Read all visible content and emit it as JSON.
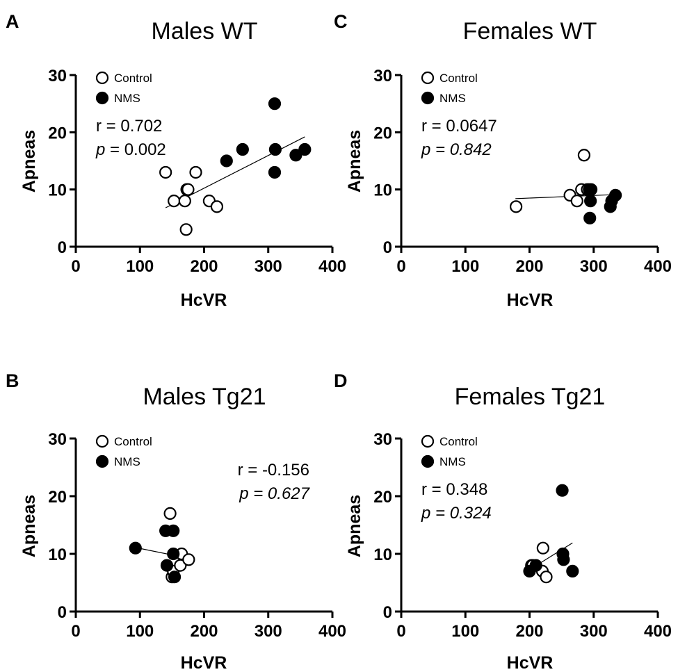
{
  "chart_data": [
    {
      "id": "A",
      "type": "scatter",
      "panel_letter": "A",
      "title": "Males WT",
      "xlabel": "HcVR",
      "ylabel": "Apneas",
      "xlim": [
        0,
        400
      ],
      "ylim": [
        0,
        30
      ],
      "xticks": [
        "0",
        "100",
        "200",
        "300",
        "400"
      ],
      "yticks": [
        "0",
        "10",
        "20",
        "30"
      ],
      "legend": [
        "Control",
        "NMS"
      ],
      "r_text": "r = 0.702",
      "p_label": "p",
      "p_value": " = 0.002",
      "p_value_italic": false,
      "stats_position": "left",
      "fit_line": {
        "x": [
          140,
          357
        ],
        "y": [
          6.8,
          19.2
        ]
      },
      "series": [
        {
          "name": "Control",
          "x": [
            140,
            153,
            170,
            172,
            173,
            175,
            187,
            208,
            220
          ],
          "y": [
            13,
            8,
            8,
            3,
            10,
            10,
            13,
            8,
            7
          ]
        },
        {
          "name": "NMS",
          "x": [
            235,
            260,
            310,
            310,
            311,
            343,
            357
          ],
          "y": [
            15,
            17,
            25,
            13,
            17,
            16,
            17
          ]
        }
      ]
    },
    {
      "id": "B",
      "type": "scatter",
      "panel_letter": "B",
      "title": "Males Tg21",
      "xlabel": "HcVR",
      "ylabel": "Apneas",
      "xlim": [
        0,
        400
      ],
      "ylim": [
        0,
        30
      ],
      "xticks": [
        "0",
        "100",
        "200",
        "300",
        "400"
      ],
      "yticks": [
        "0",
        "10",
        "20",
        "30"
      ],
      "legend": [
        "Control",
        "NMS"
      ],
      "r_text": "r = -0.156",
      "p_label": "p",
      "p_value": " = 0.627",
      "p_value_italic": true,
      "stats_position": "right",
      "fit_line": {
        "x": [
          93,
          177
        ],
        "y": [
          11.1,
          9.2
        ]
      },
      "series": [
        {
          "name": "Control",
          "x": [
            147,
            150,
            152,
            163,
            165,
            176
          ],
          "y": [
            17,
            6,
            7,
            8,
            10,
            9
          ]
        },
        {
          "name": "NMS",
          "x": [
            93,
            140,
            142,
            152,
            152,
            154
          ],
          "y": [
            11,
            14,
            8,
            14,
            10,
            6
          ]
        }
      ]
    },
    {
      "id": "C",
      "type": "scatter",
      "panel_letter": "C",
      "title": "Females WT",
      "xlabel": "HcVR",
      "ylabel": "Apneas",
      "xlim": [
        0,
        400
      ],
      "ylim": [
        0,
        30
      ],
      "xticks": [
        "0",
        "100",
        "200",
        "300",
        "400"
      ],
      "yticks": [
        "0",
        "10",
        "20",
        "30"
      ],
      "legend": [
        "Control",
        "NMS"
      ],
      "r_text": "r = 0.0647",
      "p_label": "p",
      "p_value": " = 0.842",
      "p_value_italic": true,
      "stats_position": "left",
      "fit_line": {
        "x": [
          178,
          332
        ],
        "y": [
          8.4,
          9.1
        ]
      },
      "series": [
        {
          "name": "Control",
          "x": [
            179,
            263,
            274,
            281,
            285,
            290
          ],
          "y": [
            7,
            9,
            8,
            10,
            16,
            10
          ]
        },
        {
          "name": "NMS",
          "x": [
            293,
            294,
            295,
            296,
            326,
            328,
            334
          ],
          "y": [
            10,
            5,
            8,
            10,
            7,
            8,
            9
          ]
        }
      ]
    },
    {
      "id": "D",
      "type": "scatter",
      "panel_letter": "D",
      "title": "Females Tg21",
      "xlabel": "HcVR",
      "ylabel": "Apneas",
      "xlim": [
        0,
        400
      ],
      "ylim": [
        0,
        30
      ],
      "xticks": [
        "0",
        "100",
        "200",
        "300",
        "400"
      ],
      "yticks": [
        "0",
        "10",
        "20",
        "30"
      ],
      "legend": [
        "Control",
        "NMS"
      ],
      "r_text": "r = 0.348",
      "p_label": "p",
      "p_value": " = 0.324",
      "p_value_italic": true,
      "stats_position": "left",
      "fit_line": {
        "x": [
          205,
          267
        ],
        "y": [
          7.6,
          11.9
        ]
      },
      "series": [
        {
          "name": "Control",
          "x": [
            203,
            205,
            220,
            221,
            226
          ],
          "y": [
            8,
            8,
            7,
            11,
            6
          ]
        },
        {
          "name": "NMS",
          "x": [
            200,
            210,
            251,
            252,
            253,
            267
          ],
          "y": [
            7,
            8,
            21,
            10,
            9,
            7
          ]
        }
      ]
    }
  ]
}
